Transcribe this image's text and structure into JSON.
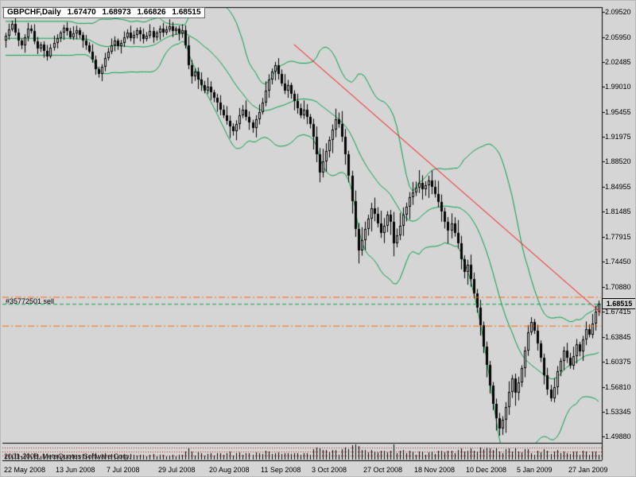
{
  "order": {
    "label": "#35772501 sell",
    "sl_price": 1.695,
    "tp_price": 1.6545,
    "open_price": 1.68515,
    "sl_tp_color": "#ff6a00",
    "open_color": "#00a04a"
  },
  "footer": {
    "copyright": "2001-2008, MetaQuotes Software Corp."
  },
  "chart_data": {
    "type": "candlestick",
    "title": "GBPCHF,Daily",
    "ohlc_display": {
      "open": "1.67470",
      "high": "1.68973",
      "low": "1.66826",
      "close": "1.68515"
    },
    "current_price": "1.68515",
    "ylim": [
      1.49,
      2.102
    ],
    "y_axis_labels": [
      "2.09520",
      "2.05950",
      "2.02485",
      "1.99010",
      "1.95455",
      "1.91975",
      "1.88520",
      "1.84955",
      "1.81485",
      "1.77915",
      "1.74450",
      "1.70880",
      "1.67415",
      "1.63845",
      "1.60375",
      "1.56810",
      "1.53345",
      "1.49880"
    ],
    "x_axis_labels": [
      {
        "text": "22 May 2008",
        "index": 0
      },
      {
        "text": "13 Jun 2008",
        "index": 16
      },
      {
        "text": "7 Jul 2008",
        "index": 32
      },
      {
        "text": "29 Jul 2008",
        "index": 48
      },
      {
        "text": "20 Aug 2008",
        "index": 64
      },
      {
        "text": "11 Sep 2008",
        "index": 80
      },
      {
        "text": "3 Oct 2008",
        "index": 96
      },
      {
        "text": "27 Oct 2008",
        "index": 112
      },
      {
        "text": "18 Nov 2008",
        "index": 128
      },
      {
        "text": "10 Dec 2008",
        "index": 144
      },
      {
        "text": "5 Jan 2009",
        "index": 160
      },
      {
        "text": "27 Jan 2009",
        "index": 176
      }
    ],
    "bollinger": {
      "period": 20,
      "deviations": 2,
      "color": "#00a04a"
    },
    "trendline": {
      "color": "#ff0000",
      "points": [
        {
          "index": 90,
          "price": 2.0495
        },
        {
          "index": 187,
          "price": 1.6676
        }
      ]
    },
    "colors": {
      "candle": "#000000",
      "background": "#d5d5d5",
      "volume_grid": "#c42020",
      "frame": "#000000"
    },
    "candles": [
      [
        2.055,
        2.066,
        2.045,
        2.062
      ],
      [
        2.062,
        2.079,
        2.056,
        2.071
      ],
      [
        2.071,
        2.083,
        2.068,
        2.078
      ],
      [
        2.078,
        2.088,
        2.062,
        2.066
      ],
      [
        2.066,
        2.072,
        2.047,
        2.055
      ],
      [
        2.055,
        2.058,
        2.043,
        2.048
      ],
      [
        2.048,
        2.064,
        2.038,
        2.06
      ],
      [
        2.06,
        2.08,
        2.054,
        2.072
      ],
      [
        2.072,
        2.077,
        2.065,
        2.068
      ],
      [
        2.068,
        2.078,
        2.05,
        2.054
      ],
      [
        2.054,
        2.06,
        2.036,
        2.044
      ],
      [
        2.044,
        2.053,
        2.039,
        2.05
      ],
      [
        2.05,
        2.054,
        2.031,
        2.041
      ],
      [
        2.041,
        2.049,
        2.027,
        2.033
      ],
      [
        2.033,
        2.05,
        2.03,
        2.045
      ],
      [
        2.045,
        2.062,
        2.041,
        2.052
      ],
      [
        2.052,
        2.064,
        2.044,
        2.058
      ],
      [
        2.058,
        2.069,
        2.053,
        2.066
      ],
      [
        2.066,
        2.077,
        2.056,
        2.073
      ],
      [
        2.073,
        2.081,
        2.062,
        2.068
      ],
      [
        2.068,
        2.073,
        2.057,
        2.06
      ],
      [
        2.06,
        2.075,
        2.056,
        2.065
      ],
      [
        2.065,
        2.076,
        2.057,
        2.07
      ],
      [
        2.07,
        2.073,
        2.058,
        2.063
      ],
      [
        2.063,
        2.067,
        2.045,
        2.055
      ],
      [
        2.055,
        2.063,
        2.042,
        2.048
      ],
      [
        2.048,
        2.053,
        2.037,
        2.04
      ],
      [
        2.04,
        2.05,
        2.024,
        2.028
      ],
      [
        2.028,
        2.034,
        2.007,
        2.015
      ],
      [
        2.015,
        2.018,
        2.003,
        2.008
      ],
      [
        2.008,
        2.022,
        1.998,
        2.018
      ],
      [
        2.018,
        2.038,
        2.012,
        2.03
      ],
      [
        2.03,
        2.045,
        2.027,
        2.04
      ],
      [
        2.04,
        2.058,
        2.036,
        2.048
      ],
      [
        2.048,
        2.061,
        2.04,
        2.055
      ],
      [
        2.055,
        2.058,
        2.042,
        2.047
      ],
      [
        2.047,
        2.056,
        2.037,
        2.052
      ],
      [
        2.052,
        2.068,
        2.046,
        2.06
      ],
      [
        2.06,
        2.071,
        2.057,
        2.066
      ],
      [
        2.066,
        2.076,
        2.054,
        2.058
      ],
      [
        2.058,
        2.069,
        2.05,
        2.063
      ],
      [
        2.063,
        2.073,
        2.058,
        2.07
      ],
      [
        2.07,
        2.074,
        2.054,
        2.064
      ],
      [
        2.064,
        2.072,
        2.051,
        2.057
      ],
      [
        2.057,
        2.067,
        2.054,
        2.062
      ],
      [
        2.062,
        2.078,
        2.058,
        2.068
      ],
      [
        2.068,
        2.074,
        2.052,
        2.06
      ],
      [
        2.06,
        2.069,
        2.055,
        2.066
      ],
      [
        2.066,
        2.076,
        2.056,
        2.072
      ],
      [
        2.072,
        2.08,
        2.06,
        2.066
      ],
      [
        2.066,
        2.076,
        2.063,
        2.071
      ],
      [
        2.071,
        2.085,
        2.067,
        2.075
      ],
      [
        2.075,
        2.081,
        2.06,
        2.068
      ],
      [
        2.068,
        2.075,
        2.063,
        2.072
      ],
      [
        2.072,
        2.076,
        2.055,
        2.065
      ],
      [
        2.065,
        2.078,
        2.059,
        2.07
      ],
      [
        2.07,
        2.0765,
        2.0441,
        2.048
      ],
      [
        2.048,
        2.061,
        2.0148,
        2.02
      ],
      [
        2.02,
        2.0278,
        1.9946,
        2.005
      ],
      [
        2.005,
        2.0159,
        1.9985,
        2.012
      ],
      [
        2.012,
        2.0172,
        1.987,
        2.0
      ],
      [
        2.0,
        2.0104,
        1.9842,
        1.992
      ],
      [
        1.992,
        1.9985,
        1.9811,
        1.985
      ],
      [
        1.985,
        2.003,
        1.9798,
        1.99
      ],
      [
        1.99,
        1.9978,
        1.9716,
        1.982
      ],
      [
        1.982,
        1.9859,
        1.9685,
        1.975
      ],
      [
        1.975,
        1.9802,
        1.955,
        1.968
      ],
      [
        1.968,
        1.9784,
        1.9502,
        1.958
      ],
      [
        1.958,
        1.9645,
        1.9461,
        1.95
      ],
      [
        1.95,
        1.963,
        1.9368,
        1.942
      ],
      [
        1.942,
        1.9498,
        1.918,
        1.935
      ],
      [
        1.935,
        1.9389,
        1.9215,
        1.928
      ],
      [
        1.928,
        1.9432,
        1.915,
        1.938
      ],
      [
        1.938,
        1.9604,
        1.9302,
        1.95
      ],
      [
        1.95,
        1.9645,
        1.9461,
        1.958
      ],
      [
        1.958,
        1.971,
        1.9428,
        1.948
      ],
      [
        1.948,
        1.9558,
        1.9296,
        1.94
      ],
      [
        1.94,
        1.9439,
        1.9255,
        1.932
      ],
      [
        1.932,
        1.9502,
        1.919,
        1.945
      ],
      [
        1.945,
        1.9654,
        1.9372,
        1.955
      ],
      [
        1.955,
        1.9745,
        1.9511,
        1.968
      ],
      [
        1.968,
        1.998,
        1.9628,
        1.985
      ],
      [
        1.985,
        2.0078,
        1.9746,
        2.0
      ],
      [
        2.0,
        2.0159,
        1.9935,
        2.012
      ],
      [
        2.012,
        2.0252,
        1.999,
        2.02
      ],
      [
        2.02,
        2.0304,
        2.0002,
        2.008
      ],
      [
        2.008,
        2.0145,
        1.9911,
        1.995
      ],
      [
        1.995,
        2.008,
        1.9798,
        1.985
      ],
      [
        1.985,
        1.9998,
        1.9746,
        1.992
      ],
      [
        1.992,
        1.9959,
        1.9735,
        1.98
      ],
      [
        1.98,
        1.9852,
        1.957,
        1.97
      ],
      [
        1.97,
        1.9804,
        1.9522,
        1.96
      ],
      [
        1.96,
        1.9665,
        1.9461,
        1.95
      ],
      [
        1.95,
        1.971,
        1.9448,
        1.958
      ],
      [
        1.958,
        1.9658,
        1.9376,
        1.948
      ],
      [
        1.948,
        1.9519,
        1.9315,
        1.938
      ],
      [
        1.938,
        1.9452,
        1.902,
        1.92
      ],
      [
        1.92,
        1.9344,
        1.8842,
        1.895
      ],
      [
        1.895,
        1.904,
        1.856,
        1.87
      ],
      [
        1.87,
        1.903,
        1.8628,
        1.885
      ],
      [
        1.885,
        1.9108,
        1.8706,
        1.9
      ],
      [
        1.9,
        1.9204,
        1.891,
        1.915
      ],
      [
        1.915,
        1.9372,
        1.897,
        1.93
      ],
      [
        1.93,
        1.9594,
        1.9192,
        1.945
      ],
      [
        1.945,
        1.954,
        1.9326,
        1.938
      ],
      [
        1.938,
        1.956,
        1.9128,
        1.92
      ],
      [
        1.92,
        1.9308,
        1.8806,
        1.895
      ],
      [
        1.895,
        1.9004,
        1.856,
        1.865
      ],
      [
        1.865,
        1.8722,
        1.812,
        1.83
      ],
      [
        1.83,
        1.8444,
        1.7792,
        1.79
      ],
      [
        1.79,
        1.799,
        1.742,
        1.76
      ],
      [
        1.76,
        1.793,
        1.7528,
        1.775
      ],
      [
        1.775,
        1.8008,
        1.7606,
        1.79
      ],
      [
        1.79,
        1.8104,
        1.781,
        1.805
      ],
      [
        1.805,
        1.8272,
        1.787,
        1.82
      ],
      [
        1.82,
        1.8344,
        1.8012,
        1.812
      ],
      [
        1.812,
        1.821,
        1.7926,
        1.798
      ],
      [
        1.798,
        1.816,
        1.7778,
        1.785
      ],
      [
        1.785,
        1.8058,
        1.7706,
        1.795
      ],
      [
        1.795,
        1.8154,
        1.786,
        1.81
      ],
      [
        1.81,
        1.8172,
        1.782,
        1.8
      ],
      [
        1.8,
        1.8144,
        1.752,
        1.77
      ],
      [
        1.77,
        1.791,
        1.7646,
        1.782
      ],
      [
        1.782,
        1.813,
        1.7748,
        1.795
      ],
      [
        1.795,
        1.8208,
        1.7806,
        1.81
      ],
      [
        1.81,
        1.8274,
        1.801,
        1.822
      ],
      [
        1.822,
        1.8422,
        1.804,
        1.835
      ],
      [
        1.835,
        1.8564,
        1.8242,
        1.842
      ],
      [
        1.842,
        1.857,
        1.8366,
        1.848
      ],
      [
        1.848,
        1.873,
        1.8408,
        1.855
      ],
      [
        1.855,
        1.8658,
        1.8316,
        1.846
      ],
      [
        1.846,
        1.8574,
        1.837,
        1.852
      ],
      [
        1.852,
        1.8652,
        1.834,
        1.858
      ],
      [
        1.858,
        1.8724,
        1.8392,
        1.85
      ],
      [
        1.85,
        1.859,
        1.8346,
        1.84
      ],
      [
        1.84,
        1.858,
        1.8208,
        1.828
      ],
      [
        1.828,
        1.8388,
        1.8006,
        1.815
      ],
      [
        1.815,
        1.8204,
        1.791,
        1.8
      ],
      [
        1.8,
        1.8072,
        1.77,
        1.788
      ],
      [
        1.788,
        1.8124,
        1.7772,
        1.798
      ],
      [
        1.798,
        1.807,
        1.7796,
        1.785
      ],
      [
        1.785,
        1.803,
        1.7628,
        1.77
      ],
      [
        1.77,
        1.7808,
        1.7336,
        1.748
      ],
      [
        1.748,
        1.7534,
        1.721,
        1.73
      ],
      [
        1.73,
        1.7472,
        1.712,
        1.74
      ],
      [
        1.74,
        1.7544,
        1.7092,
        1.72
      ],
      [
        1.72,
        1.729,
        1.693,
        1.7
      ],
      [
        1.7,
        1.706,
        1.6728,
        1.68
      ],
      [
        1.68,
        1.6908,
        1.6406,
        1.655
      ],
      [
        1.655,
        1.6604,
        1.616,
        1.625
      ],
      [
        1.625,
        1.6322,
        1.582,
        1.6
      ],
      [
        1.6,
        1.605,
        1.5592,
        1.57
      ],
      [
        1.57,
        1.5754,
        1.536,
        1.545
      ],
      [
        1.545,
        1.5522,
        1.507,
        1.525
      ],
      [
        1.525,
        1.532,
        1.5,
        1.51
      ],
      [
        1.51,
        1.5274,
        1.501,
        1.522
      ],
      [
        1.522,
        1.5472,
        1.504,
        1.54
      ],
      [
        1.54,
        1.5764,
        1.5292,
        1.562
      ],
      [
        1.562,
        1.5854,
        1.553,
        1.58
      ],
      [
        1.58,
        1.5872,
        1.542,
        1.56
      ],
      [
        1.56,
        1.5828,
        1.5496,
        1.575
      ],
      [
        1.575,
        1.5989,
        1.5685,
        1.595
      ],
      [
        1.595,
        1.6252,
        1.582,
        1.62
      ],
      [
        1.62,
        1.6554,
        1.6122,
        1.645
      ],
      [
        1.645,
        1.6665,
        1.6411,
        1.66
      ],
      [
        1.66,
        1.664,
        1.6428,
        1.648
      ],
      [
        1.648,
        1.6558,
        1.6196,
        1.63
      ],
      [
        1.63,
        1.6339,
        1.6035,
        1.61
      ],
      [
        1.61,
        1.6152,
        1.572,
        1.585
      ],
      [
        1.585,
        1.5954,
        1.5572,
        1.565
      ],
      [
        1.565,
        1.5715,
        1.5481,
        1.552
      ],
      [
        1.552,
        1.581,
        1.5468,
        1.568
      ],
      [
        1.568,
        1.5978,
        1.5576,
        1.59
      ],
      [
        1.59,
        1.6089,
        1.5835,
        1.605
      ],
      [
        1.605,
        1.6252,
        1.592,
        1.62
      ],
      [
        1.62,
        1.6304,
        1.6022,
        1.61
      ],
      [
        1.61,
        1.6165,
        1.5941,
        1.598
      ],
      [
        1.598,
        1.625,
        1.5928,
        1.612
      ],
      [
        1.612,
        1.6358,
        1.6016,
        1.628
      ],
      [
        1.628,
        1.6319,
        1.6115,
        1.618
      ],
      [
        1.618,
        1.6402,
        1.605,
        1.635
      ],
      [
        1.635,
        1.6604,
        1.6272,
        1.65
      ],
      [
        1.65,
        1.6565,
        1.6381,
        1.642
      ],
      [
        1.642,
        1.671,
        1.6368,
        1.658
      ],
      [
        1.658,
        1.6825,
        1.6476,
        1.6747
      ],
      [
        1.6747,
        1.68973,
        1.66826,
        1.68515
      ]
    ]
  }
}
